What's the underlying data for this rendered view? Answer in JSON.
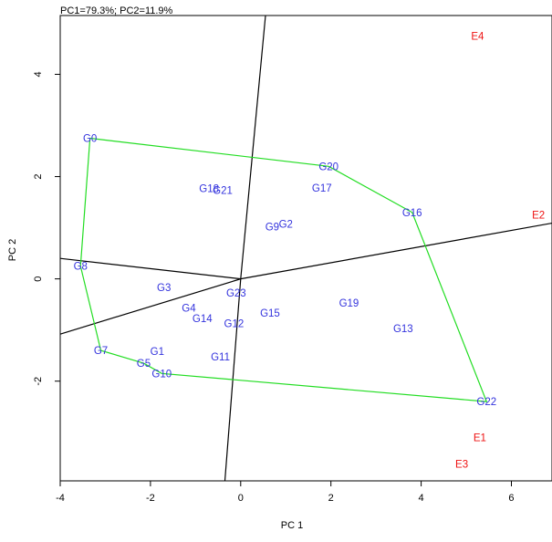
{
  "chart_data": {
    "type": "scatter",
    "subtitle": "PC1=79.3%; PC2=11.9%",
    "xlabel": "PC 1",
    "ylabel": "PC 2",
    "xlim": [
      -4,
      6.9
    ],
    "ylim": [
      -3.95,
      5.15
    ],
    "x_ticks": [
      -4,
      -2,
      0,
      2,
      4,
      6
    ],
    "y_ticks": [
      -2,
      0,
      2,
      4
    ],
    "colors": {
      "genotype": "#3333dd",
      "environment": "#ee1111",
      "hull": "#22dd22",
      "axis_lines": "#000000"
    },
    "genotypes": [
      {
        "label": "G0",
        "x": -3.34,
        "y": 2.75
      },
      {
        "label": "G20",
        "x": 1.95,
        "y": 2.2
      },
      {
        "label": "G16",
        "x": 3.8,
        "y": 1.3
      },
      {
        "label": "G22",
        "x": 5.45,
        "y": -2.4
      },
      {
        "label": "G10",
        "x": -1.75,
        "y": -1.85
      },
      {
        "label": "G5",
        "x": -2.15,
        "y": -1.65
      },
      {
        "label": "G7",
        "x": -3.1,
        "y": -1.4
      },
      {
        "label": "G8",
        "x": -3.55,
        "y": 0.25
      },
      {
        "label": "G18",
        "x": -0.7,
        "y": 1.77
      },
      {
        "label": "G21",
        "x": -0.4,
        "y": 1.73
      },
      {
        "label": "G17",
        "x": 1.8,
        "y": 1.78
      },
      {
        "label": "G9",
        "x": 0.7,
        "y": 1.02
      },
      {
        "label": "G2",
        "x": 1.0,
        "y": 1.07
      },
      {
        "label": "G3",
        "x": -1.7,
        "y": -0.17
      },
      {
        "label": "G23",
        "x": -0.1,
        "y": -0.27
      },
      {
        "label": "G19",
        "x": 2.4,
        "y": -0.47
      },
      {
        "label": "G4",
        "x": -1.15,
        "y": -0.57
      },
      {
        "label": "G15",
        "x": 0.65,
        "y": -0.67
      },
      {
        "label": "G14",
        "x": -0.85,
        "y": -0.77
      },
      {
        "label": "G12",
        "x": -0.15,
        "y": -0.87
      },
      {
        "label": "G13",
        "x": 3.6,
        "y": -0.97
      },
      {
        "label": "G1",
        "x": -1.85,
        "y": -1.42
      },
      {
        "label": "G11",
        "x": -0.45,
        "y": -1.52
      }
    ],
    "environments": [
      {
        "label": "E4",
        "x": 5.25,
        "y": 4.75
      },
      {
        "label": "E2",
        "x": 6.6,
        "y": 1.25
      },
      {
        "label": "E1",
        "x": 5.3,
        "y": -3.1
      },
      {
        "label": "E3",
        "x": 4.9,
        "y": -3.62
      }
    ],
    "hull": [
      "G0",
      "G20",
      "G16",
      "G22",
      "G10",
      "G5",
      "G7",
      "G8"
    ],
    "sector_rays": [
      {
        "x": 0.55,
        "y": 5.15
      },
      {
        "x": 6.9,
        "y": 1.09
      },
      {
        "x": -0.35,
        "y": -3.95
      },
      {
        "x": -4.0,
        "y": -1.08
      },
      {
        "x": -4.0,
        "y": 0.4
      }
    ]
  }
}
